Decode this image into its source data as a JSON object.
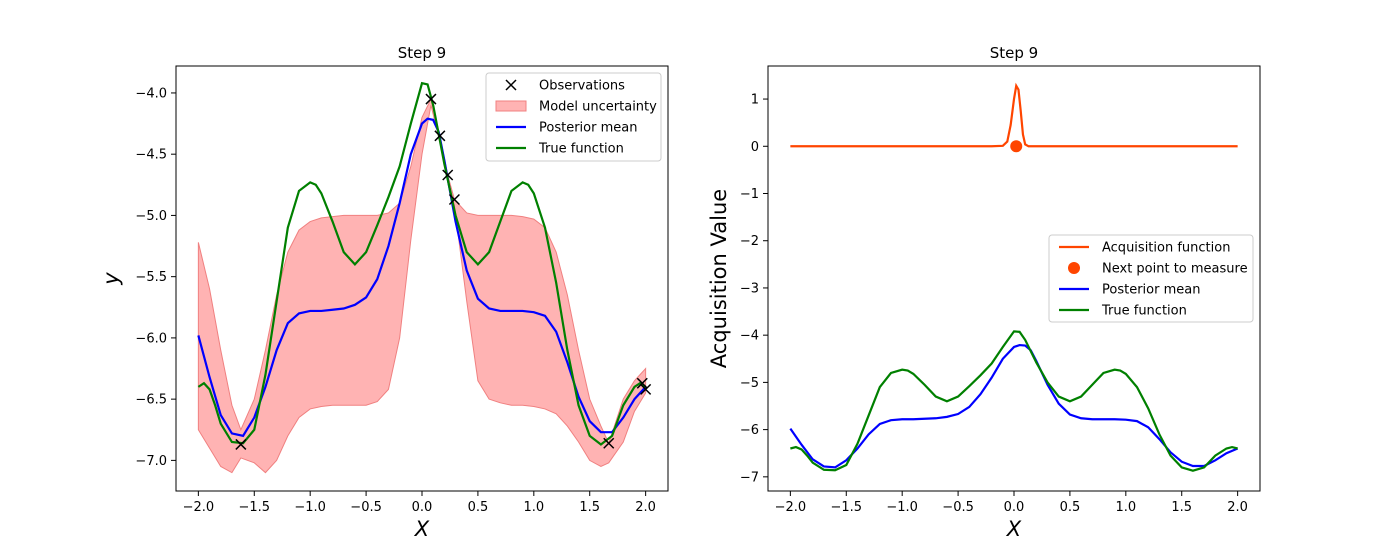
{
  "chart_data": [
    {
      "type": "line",
      "title": "Step 9",
      "xlabel": "X",
      "ylabel": "y",
      "xlim": [
        -2.2,
        2.2
      ],
      "ylim": [
        -7.25,
        -3.78
      ],
      "xticks": [
        -2.0,
        -1.5,
        -1.0,
        -0.5,
        0.0,
        0.5,
        1.0,
        1.5,
        2.0
      ],
      "xtick_labels": [
        "−2.0",
        "−1.5",
        "−1.0",
        "−0.5",
        "0.0",
        "0.5",
        "1.0",
        "1.5",
        "2.0"
      ],
      "yticks": [
        -7.0,
        -6.5,
        -6.0,
        -5.5,
        -5.0,
        -4.5,
        -4.0
      ],
      "ytick_labels": [
        "−7.0",
        "−6.5",
        "−6.0",
        "−5.5",
        "−5.0",
        "−4.5",
        "−4.0"
      ],
      "legend_position": "upper-right",
      "legend": [
        "Observations",
        "Model uncertainty",
        "Posterior mean",
        "True function"
      ],
      "observations": {
        "x": [
          -1.62,
          0.08,
          0.16,
          0.23,
          0.29,
          1.67,
          1.97,
          2.0
        ],
        "y": [
          -6.87,
          -4.05,
          -4.35,
          -4.67,
          -4.87,
          -6.86,
          -6.37,
          -6.42
        ]
      },
      "uncertainty": {
        "x": [
          -2.0,
          -1.9,
          -1.8,
          -1.7,
          -1.62,
          -1.5,
          -1.4,
          -1.3,
          -1.2,
          -1.1,
          -1.0,
          -0.9,
          -0.8,
          -0.7,
          -0.6,
          -0.5,
          -0.4,
          -0.3,
          -0.2,
          -0.1,
          0.0,
          0.08,
          0.16,
          0.23,
          0.29,
          0.4,
          0.5,
          0.6,
          0.7,
          0.8,
          0.9,
          1.0,
          1.1,
          1.2,
          1.3,
          1.4,
          1.5,
          1.6,
          1.67,
          1.8,
          1.9,
          2.0
        ],
        "upper": [
          -5.22,
          -5.6,
          -6.1,
          -6.55,
          -6.75,
          -6.5,
          -6.1,
          -5.65,
          -5.3,
          -5.12,
          -5.05,
          -5.02,
          -5.01,
          -5.0,
          -5.0,
          -5.0,
          -5.0,
          -4.98,
          -4.9,
          -4.6,
          -4.2,
          -4.05,
          -4.35,
          -4.67,
          -4.87,
          -4.98,
          -5.0,
          -5.0,
          -5.0,
          -5.0,
          -5.01,
          -5.03,
          -5.1,
          -5.3,
          -5.65,
          -6.1,
          -6.5,
          -6.72,
          -6.86,
          -6.5,
          -6.35,
          -6.25
        ],
        "lower": [
          -6.75,
          -6.9,
          -7.05,
          -7.1,
          -6.98,
          -7.02,
          -7.1,
          -7.0,
          -6.8,
          -6.65,
          -6.58,
          -6.56,
          -6.55,
          -6.55,
          -6.55,
          -6.55,
          -6.52,
          -6.42,
          -6.0,
          -5.2,
          -4.5,
          -4.1,
          -4.4,
          -4.72,
          -4.92,
          -5.7,
          -6.35,
          -6.5,
          -6.53,
          -6.55,
          -6.55,
          -6.56,
          -6.58,
          -6.62,
          -6.72,
          -6.85,
          -7.0,
          -7.05,
          -7.02,
          -6.85,
          -6.6,
          -6.45
        ]
      },
      "posterior_mean": {
        "x": [
          -2.0,
          -1.9,
          -1.8,
          -1.7,
          -1.6,
          -1.5,
          -1.4,
          -1.3,
          -1.2,
          -1.1,
          -1.0,
          -0.9,
          -0.8,
          -0.7,
          -0.6,
          -0.5,
          -0.4,
          -0.3,
          -0.2,
          -0.1,
          0.0,
          0.05,
          0.1,
          0.15,
          0.2,
          0.3,
          0.4,
          0.5,
          0.6,
          0.7,
          0.8,
          0.9,
          1.0,
          1.1,
          1.2,
          1.3,
          1.4,
          1.5,
          1.6,
          1.7,
          1.8,
          1.9,
          2.0
        ],
        "y": [
          -5.98,
          -6.32,
          -6.63,
          -6.78,
          -6.8,
          -6.65,
          -6.4,
          -6.1,
          -5.88,
          -5.8,
          -5.78,
          -5.78,
          -5.77,
          -5.76,
          -5.73,
          -5.67,
          -5.52,
          -5.25,
          -4.9,
          -4.5,
          -4.25,
          -4.21,
          -4.22,
          -4.32,
          -4.55,
          -5.05,
          -5.45,
          -5.68,
          -5.76,
          -5.78,
          -5.78,
          -5.78,
          -5.79,
          -5.82,
          -5.95,
          -6.2,
          -6.48,
          -6.68,
          -6.77,
          -6.77,
          -6.65,
          -6.5,
          -6.4
        ]
      },
      "true_function": {
        "x": [
          -2.0,
          -1.95,
          -1.9,
          -1.85,
          -1.8,
          -1.7,
          -1.6,
          -1.5,
          -1.4,
          -1.3,
          -1.2,
          -1.1,
          -1.0,
          -0.95,
          -0.9,
          -0.8,
          -0.7,
          -0.6,
          -0.5,
          -0.4,
          -0.3,
          -0.2,
          -0.1,
          0.0,
          0.05,
          0.1,
          0.2,
          0.3,
          0.4,
          0.5,
          0.6,
          0.7,
          0.8,
          0.9,
          0.95,
          1.0,
          1.1,
          1.2,
          1.3,
          1.4,
          1.5,
          1.6,
          1.7,
          1.8,
          1.9,
          1.95,
          2.0
        ],
        "y": [
          -6.4,
          -6.37,
          -6.42,
          -6.55,
          -6.7,
          -6.85,
          -6.86,
          -6.75,
          -6.3,
          -5.7,
          -5.1,
          -4.8,
          -4.73,
          -4.75,
          -4.82,
          -5.05,
          -5.3,
          -5.4,
          -5.3,
          -5.08,
          -4.85,
          -4.6,
          -4.25,
          -3.92,
          -3.93,
          -4.1,
          -4.58,
          -5.0,
          -5.3,
          -5.4,
          -5.3,
          -5.05,
          -4.8,
          -4.73,
          -4.75,
          -4.82,
          -5.1,
          -5.55,
          -6.1,
          -6.55,
          -6.8,
          -6.87,
          -6.8,
          -6.55,
          -6.4,
          -6.37,
          -6.4
        ]
      }
    },
    {
      "type": "line",
      "title": "Step 9",
      "xlabel": "X",
      "ylabel": "Acquisition Value",
      "xlim": [
        -2.2,
        2.2
      ],
      "ylim": [
        -7.3,
        1.7
      ],
      "xticks": [
        -2.0,
        -1.5,
        -1.0,
        -0.5,
        0.0,
        0.5,
        1.0,
        1.5,
        2.0
      ],
      "xtick_labels": [
        "−2.0",
        "−1.5",
        "−1.0",
        "−0.5",
        "0.0",
        "0.5",
        "1.0",
        "1.5",
        "2.0"
      ],
      "yticks": [
        -7,
        -6,
        -5,
        -4,
        -3,
        -2,
        -1,
        0,
        1
      ],
      "ytick_labels": [
        "−7",
        "−6",
        "−5",
        "−4",
        "−3",
        "−2",
        "−1",
        "0",
        "1"
      ],
      "legend_position": "center-right",
      "legend": [
        "Acquisition function",
        "Next point to measure",
        "Posterior mean",
        "True function"
      ],
      "acquisition": {
        "x": [
          -2.0,
          -0.2,
          -0.1,
          -0.06,
          -0.03,
          0.0,
          0.02,
          0.04,
          0.06,
          0.08,
          0.1,
          0.13,
          0.2,
          2.0
        ],
        "y": [
          0.0,
          0.0,
          0.01,
          0.1,
          0.45,
          1.0,
          1.28,
          1.2,
          0.75,
          0.25,
          0.04,
          0.0,
          0.0,
          0.0
        ]
      },
      "next_point": {
        "x": 0.02,
        "y": 0.0
      },
      "posterior_mean": {
        "x": [
          -2.0,
          -1.9,
          -1.8,
          -1.7,
          -1.6,
          -1.5,
          -1.4,
          -1.3,
          -1.2,
          -1.1,
          -1.0,
          -0.9,
          -0.8,
          -0.7,
          -0.6,
          -0.5,
          -0.4,
          -0.3,
          -0.2,
          -0.1,
          0.0,
          0.05,
          0.1,
          0.15,
          0.2,
          0.3,
          0.4,
          0.5,
          0.6,
          0.7,
          0.8,
          0.9,
          1.0,
          1.1,
          1.2,
          1.3,
          1.4,
          1.5,
          1.6,
          1.7,
          1.8,
          1.9,
          2.0
        ],
        "y": [
          -5.98,
          -6.32,
          -6.63,
          -6.78,
          -6.8,
          -6.65,
          -6.4,
          -6.1,
          -5.88,
          -5.8,
          -5.78,
          -5.78,
          -5.77,
          -5.76,
          -5.73,
          -5.67,
          -5.52,
          -5.25,
          -4.9,
          -4.5,
          -4.25,
          -4.21,
          -4.22,
          -4.32,
          -4.55,
          -5.05,
          -5.45,
          -5.68,
          -5.76,
          -5.78,
          -5.78,
          -5.78,
          -5.79,
          -5.82,
          -5.95,
          -6.2,
          -6.48,
          -6.68,
          -6.77,
          -6.77,
          -6.65,
          -6.5,
          -6.4
        ]
      },
      "true_function": {
        "x": [
          -2.0,
          -1.95,
          -1.9,
          -1.85,
          -1.8,
          -1.7,
          -1.6,
          -1.5,
          -1.4,
          -1.3,
          -1.2,
          -1.1,
          -1.0,
          -0.95,
          -0.9,
          -0.8,
          -0.7,
          -0.6,
          -0.5,
          -0.4,
          -0.3,
          -0.2,
          -0.1,
          0.0,
          0.05,
          0.1,
          0.2,
          0.3,
          0.4,
          0.5,
          0.6,
          0.7,
          0.8,
          0.9,
          0.95,
          1.0,
          1.1,
          1.2,
          1.3,
          1.4,
          1.5,
          1.6,
          1.7,
          1.8,
          1.9,
          1.95,
          2.0
        ],
        "y": [
          -6.4,
          -6.37,
          -6.42,
          -6.55,
          -6.7,
          -6.85,
          -6.86,
          -6.75,
          -6.3,
          -5.7,
          -5.1,
          -4.8,
          -4.73,
          -4.75,
          -4.82,
          -5.05,
          -5.3,
          -5.4,
          -5.3,
          -5.08,
          -4.85,
          -4.6,
          -4.25,
          -3.92,
          -3.93,
          -4.1,
          -4.58,
          -5.0,
          -5.3,
          -5.4,
          -5.3,
          -5.05,
          -4.8,
          -4.73,
          -4.75,
          -4.82,
          -5.1,
          -5.55,
          -6.1,
          -6.55,
          -6.8,
          -6.87,
          -6.8,
          -6.55,
          -6.4,
          -6.37,
          -6.4
        ]
      }
    }
  ],
  "colors": {
    "posterior_mean": "#0000ff",
    "true_function": "#008000",
    "uncertainty_fill": "#ffb3b3",
    "uncertainty_edge": "#f08080",
    "acquisition": "#ff4500",
    "observation": "#000000"
  }
}
